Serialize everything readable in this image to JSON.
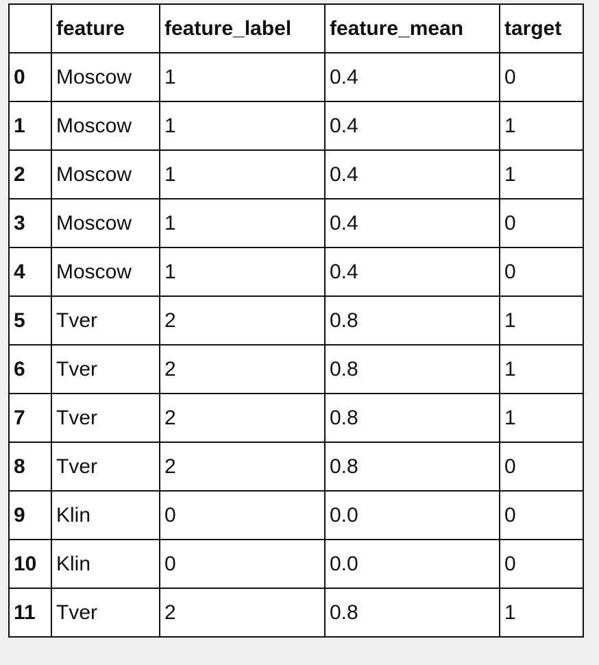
{
  "table": {
    "columns": [
      "",
      "feature",
      "feature_label",
      "feature_mean",
      "target"
    ],
    "rows": [
      [
        "0",
        "Moscow",
        "1",
        "0.4",
        "0"
      ],
      [
        "1",
        "Moscow",
        "1",
        "0.4",
        "1"
      ],
      [
        "2",
        "Moscow",
        "1",
        "0.4",
        "1"
      ],
      [
        "3",
        "Moscow",
        "1",
        "0.4",
        "0"
      ],
      [
        "4",
        "Moscow",
        "1",
        "0.4",
        "0"
      ],
      [
        "5",
        "Tver",
        "2",
        "0.8",
        "1"
      ],
      [
        "6",
        "Tver",
        "2",
        "0.8",
        "1"
      ],
      [
        "7",
        "Tver",
        "2",
        "0.8",
        "1"
      ],
      [
        "8",
        "Tver",
        "2",
        "0.8",
        "0"
      ],
      [
        "9",
        "Klin",
        "0",
        "0.0",
        "0"
      ],
      [
        "10",
        "Klin",
        "0",
        "0.0",
        "0"
      ],
      [
        "11",
        "Tver",
        "2",
        "0.8",
        "1"
      ]
    ]
  }
}
